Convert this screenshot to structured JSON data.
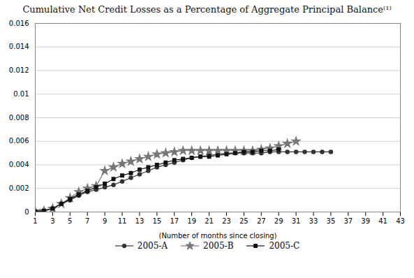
{
  "chart_data": {
    "type": "line",
    "title": "Cumulative Net Credit Losses as a Percentage of Aggregate Principal Balance⁽¹⁾",
    "xlabel": "(Number of months since closing)",
    "xlim": [
      1,
      43
    ],
    "xticks": [
      1,
      3,
      5,
      7,
      9,
      11,
      13,
      15,
      17,
      19,
      21,
      23,
      25,
      27,
      29,
      31,
      33,
      35,
      37,
      39,
      41,
      43
    ],
    "ylim": [
      0,
      0.016
    ],
    "yticks": [
      0,
      0.002,
      0.004,
      0.006,
      0.008,
      0.01,
      0.012,
      0.014,
      0.016
    ],
    "grid": true,
    "legend": "bottom",
    "series": [
      {
        "name": "2005-A",
        "color": "#333333",
        "marker": "circle",
        "x": [
          1,
          2,
          3,
          4,
          5,
          6,
          7,
          8,
          9,
          10,
          11,
          12,
          13,
          14,
          15,
          16,
          17,
          18,
          19,
          20,
          21,
          22,
          23,
          24,
          25,
          26,
          27,
          28,
          29,
          30,
          31,
          32,
          33,
          34,
          35
        ],
        "values": [
          5e-05,
          0.0001,
          0.0003,
          0.0007,
          0.001,
          0.0014,
          0.0017,
          0.0019,
          0.0021,
          0.0023,
          0.0026,
          0.0029,
          0.0032,
          0.0035,
          0.0038,
          0.004,
          0.0042,
          0.0044,
          0.0046,
          0.0047,
          0.0048,
          0.0049,
          0.005,
          0.005,
          0.005,
          0.005,
          0.005,
          0.0051,
          0.0051,
          0.0051,
          0.0051,
          0.0051,
          0.0051,
          0.0051,
          0.0051
        ]
      },
      {
        "name": "2005-B",
        "color": "#777777",
        "marker": "star",
        "x": [
          1,
          2,
          3,
          4,
          5,
          6,
          7,
          8,
          9,
          10,
          11,
          12,
          13,
          14,
          15,
          16,
          17,
          18,
          19,
          20,
          21,
          22,
          23,
          24,
          25,
          26,
          27,
          28,
          29,
          30,
          31
        ],
        "values": [
          5e-05,
          0.0001,
          0.0003,
          0.0007,
          0.0012,
          0.0017,
          0.002,
          0.0022,
          0.0035,
          0.0038,
          0.0041,
          0.0043,
          0.0045,
          0.0047,
          0.0049,
          0.005,
          0.0051,
          0.0052,
          0.0052,
          0.0052,
          0.0052,
          0.0052,
          0.0052,
          0.0052,
          0.0052,
          0.0052,
          0.0053,
          0.0054,
          0.0056,
          0.0058,
          0.006
        ]
      },
      {
        "name": "2005-C",
        "color": "#111111",
        "marker": "square",
        "x": [
          1,
          2,
          3,
          4,
          5,
          6,
          7,
          8,
          9,
          10,
          11,
          12,
          13,
          14,
          15,
          16,
          17,
          18,
          19,
          20,
          21,
          22,
          23,
          24,
          25,
          26,
          27,
          28,
          29
        ],
        "values": [
          5e-05,
          0.0001,
          0.0003,
          0.0007,
          0.0011,
          0.0015,
          0.0018,
          0.0021,
          0.0024,
          0.0028,
          0.0031,
          0.0033,
          0.0036,
          0.0038,
          0.004,
          0.0042,
          0.0044,
          0.0045,
          0.0046,
          0.0047,
          0.0047,
          0.0048,
          0.0049,
          0.005,
          0.0051,
          0.0051,
          0.0052,
          0.0052,
          0.0053
        ]
      }
    ]
  }
}
